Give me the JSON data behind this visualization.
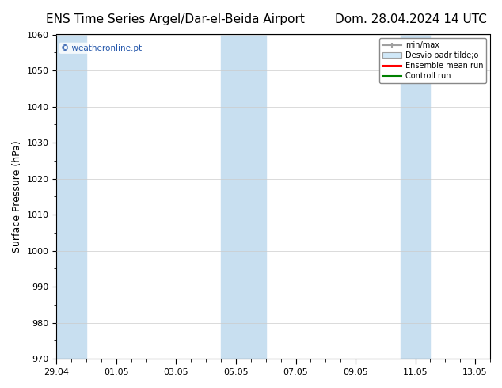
{
  "title_left": "ENS Time Series Argel/Dar-el-Beida Airport",
  "title_right": "Dom. 28.04.2024 14 UTC",
  "ylabel": "Surface Pressure (hPa)",
  "ylim": [
    970,
    1060
  ],
  "yticks": [
    970,
    980,
    990,
    1000,
    1010,
    1020,
    1030,
    1040,
    1050,
    1060
  ],
  "xlim_start": 0,
  "xlim_end": 14.5,
  "xtick_labels": [
    "29.04",
    "01.05",
    "03.05",
    "05.05",
    "07.05",
    "09.05",
    "11.05",
    "13.05"
  ],
  "xtick_positions": [
    0,
    2,
    4,
    6,
    8,
    10,
    12,
    14
  ],
  "watermark": "© weatheronline.pt",
  "legend_entries": [
    "min/max",
    "Desvio padr tilde;o",
    "Ensemble mean run",
    "Controll run"
  ],
  "legend_colors": [
    "#a0a0a0",
    "#c8dff0",
    "#ff0000",
    "#008000"
  ],
  "background_color": "#ffffff",
  "plot_bg_color": "#ffffff",
  "shaded_bands": [
    {
      "x_start": 0,
      "x_end": 1.0,
      "color": "#c8dff0"
    },
    {
      "x_start": 5.5,
      "x_end": 7.0,
      "color": "#c8dff0"
    },
    {
      "x_start": 11.5,
      "x_end": 12.5,
      "color": "#c8dff0"
    }
  ],
  "title_fontsize": 11,
  "axis_label_fontsize": 9,
  "tick_fontsize": 8
}
